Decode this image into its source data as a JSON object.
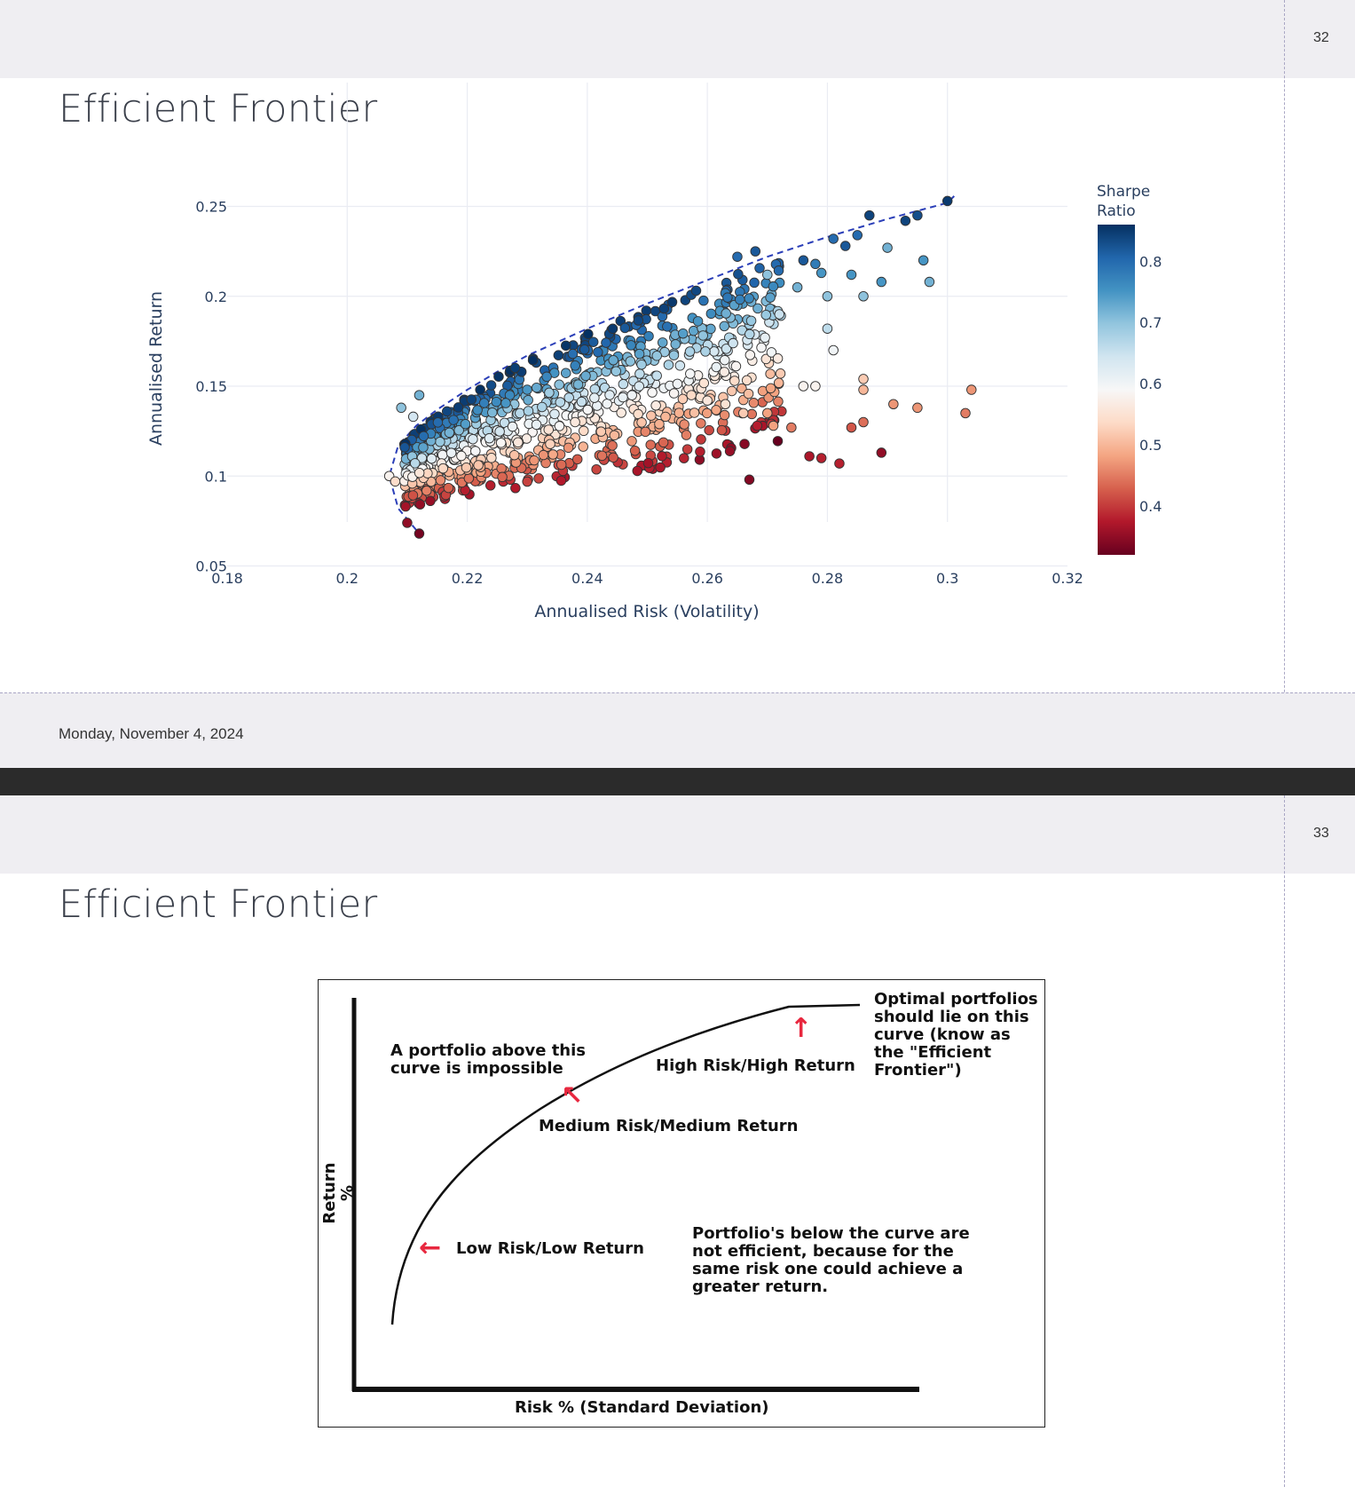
{
  "slide1": {
    "page_number": "32",
    "title": "Efficient Frontier",
    "footer_date": "Monday, November 4, 2024"
  },
  "slide2": {
    "page_number": "33",
    "title": "Efficient Frontier",
    "diagram": {
      "y_axis_label": "Return %",
      "x_axis_label": "Risk % (Standard Deviation)",
      "above_curve_note": "A portfolio above this\ncurve is impossible",
      "high_label": "High Risk/High Return",
      "medium_label": "Medium Risk/Medium Return",
      "low_label": "Low Risk/Low Return",
      "optimal_note": "Optimal portfolios\nshould lie on this\ncurve (know as\nthe \"Efficient\nFrontier\")",
      "below_note": "Portfolio's below the curve are\nnot efficient, because for the\nsame risk one could achieve a\ngreater return.",
      "arrow_left": "←",
      "arrow_diag": "↖",
      "arrow_up": "↑"
    }
  },
  "chart_data": {
    "type": "scatter",
    "xlabel": "Annualised Risk (Volatility)",
    "ylabel": "Annualised Return",
    "xlim": [
      0.18,
      0.32
    ],
    "ylim": [
      0.03,
      0.27
    ],
    "x_ticks": [
      "0.18",
      "0.2",
      "0.22",
      "0.24",
      "0.26",
      "0.28",
      "0.3",
      "0.32"
    ],
    "y_ticks": [
      "0.05",
      "0.1",
      "0.15",
      "0.2",
      "0.25"
    ],
    "colorbar": {
      "title_line1": "Sharpe",
      "title_line2": "Ratio",
      "ticks": [
        "0.4",
        "0.5",
        "0.6",
        "0.7",
        "0.8"
      ],
      "range": [
        0.32,
        0.86
      ],
      "colors": [
        "#67001f",
        "#b2182b",
        "#d6604d",
        "#f4a582",
        "#fddbc7",
        "#f7f7f7",
        "#d1e5f0",
        "#92c5de",
        "#4393c3",
        "#2166ac",
        "#053061"
      ]
    },
    "frontier": {
      "style": "dashed",
      "color": "#2b3fb8",
      "points": [
        [
          0.2115,
          0.07
        ],
        [
          0.2085,
          0.082
        ],
        [
          0.207,
          0.1
        ],
        [
          0.2085,
          0.117
        ],
        [
          0.2115,
          0.128
        ],
        [
          0.215,
          0.137
        ],
        [
          0.22,
          0.148
        ],
        [
          0.225,
          0.158
        ],
        [
          0.23,
          0.167
        ],
        [
          0.24,
          0.182
        ],
        [
          0.25,
          0.196
        ],
        [
          0.26,
          0.209
        ],
        [
          0.27,
          0.222
        ],
        [
          0.28,
          0.233
        ],
        [
          0.29,
          0.243
        ],
        [
          0.3,
          0.252
        ],
        [
          0.3015,
          0.257
        ]
      ]
    },
    "points_note": "About 1,000 simulated portfolios, coloured by Sharpe ratio. The highlighted points are the outliers that can be read off individually; the rest fill the band between the frontier and the lower edge.",
    "points": [
      [
        0.3,
        0.253,
        0.85
      ],
      [
        0.287,
        0.245,
        0.84
      ],
      [
        0.293,
        0.242,
        0.84
      ],
      [
        0.295,
        0.245,
        0.83
      ],
      [
        0.285,
        0.234,
        0.8
      ],
      [
        0.281,
        0.232,
        0.8
      ],
      [
        0.283,
        0.228,
        0.82
      ],
      [
        0.29,
        0.227,
        0.72
      ],
      [
        0.296,
        0.22,
        0.75
      ],
      [
        0.297,
        0.208,
        0.72
      ],
      [
        0.289,
        0.208,
        0.75
      ],
      [
        0.284,
        0.212,
        0.75
      ],
      [
        0.286,
        0.2,
        0.7
      ],
      [
        0.279,
        0.213,
        0.75
      ],
      [
        0.28,
        0.2,
        0.7
      ],
      [
        0.275,
        0.205,
        0.72
      ],
      [
        0.27,
        0.212,
        0.7
      ],
      [
        0.272,
        0.19,
        0.65
      ],
      [
        0.28,
        0.182,
        0.66
      ],
      [
        0.281,
        0.17,
        0.6
      ],
      [
        0.265,
        0.222,
        0.8
      ],
      [
        0.268,
        0.225,
        0.82
      ],
      [
        0.276,
        0.22,
        0.82
      ],
      [
        0.278,
        0.218,
        0.78
      ],
      [
        0.286,
        0.148,
        0.5
      ],
      [
        0.291,
        0.14,
        0.47
      ],
      [
        0.295,
        0.138,
        0.47
      ],
      [
        0.303,
        0.135,
        0.45
      ],
      [
        0.304,
        0.148,
        0.47
      ],
      [
        0.286,
        0.154,
        0.52
      ],
      [
        0.278,
        0.15,
        0.58
      ],
      [
        0.276,
        0.15,
        0.58
      ],
      [
        0.286,
        0.13,
        0.44
      ],
      [
        0.284,
        0.127,
        0.42
      ],
      [
        0.279,
        0.11,
        0.38
      ],
      [
        0.277,
        0.111,
        0.37
      ],
      [
        0.282,
        0.107,
        0.38
      ],
      [
        0.289,
        0.113,
        0.35
      ],
      [
        0.267,
        0.098,
        0.34
      ],
      [
        0.212,
        0.068,
        0.33
      ],
      [
        0.21,
        0.074,
        0.35
      ],
      [
        0.271,
        0.128,
        0.48
      ],
      [
        0.27,
        0.135,
        0.48
      ],
      [
        0.274,
        0.127,
        0.45
      ],
      [
        0.266,
        0.135,
        0.52
      ],
      [
        0.263,
        0.14,
        0.55
      ],
      [
        0.26,
        0.142,
        0.56
      ],
      [
        0.207,
        0.1,
        0.58
      ],
      [
        0.208,
        0.097,
        0.54
      ],
      [
        0.209,
        0.138,
        0.7
      ],
      [
        0.212,
        0.145,
        0.72
      ],
      [
        0.211,
        0.133,
        0.64
      ]
    ],
    "cloud": {
      "count": 920,
      "note": "dense cloud: x 0.21 to 0.27, return between the lower edge and the frontier; Sharpe rises from lower-right (~0.38) to upper-left along the frontier (~0.8)",
      "lower_edge": [
        [
          0.21,
          0.083
        ],
        [
          0.22,
          0.088
        ],
        [
          0.23,
          0.093
        ],
        [
          0.24,
          0.098
        ],
        [
          0.25,
          0.103
        ],
        [
          0.26,
          0.108
        ],
        [
          0.27,
          0.118
        ]
      ]
    }
  }
}
